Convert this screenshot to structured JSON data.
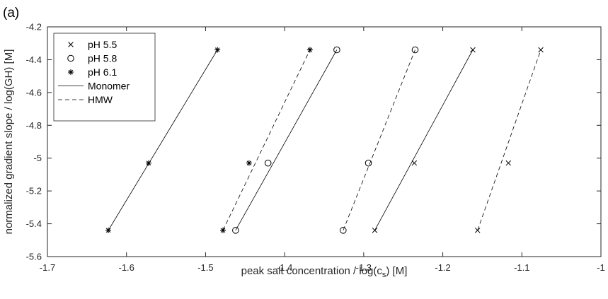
{
  "panel_label": "(a)",
  "chart_data": {
    "type": "scatter",
    "title": "",
    "xlabel_main": "peak salt concentration / log(c",
    "xlabel_sub": "s",
    "xlabel_tail": ") [M]",
    "ylabel": "normalized gradient slope / log(GH) [M]",
    "xlim": [
      -1.7,
      -1.0
    ],
    "ylim": [
      -5.6,
      -4.2
    ],
    "xticks": [
      -1.7,
      -1.6,
      -1.5,
      -1.4,
      -1.3,
      -1.2,
      -1.1,
      -1
    ],
    "xtick_labels": [
      "-1.7",
      "-1.6",
      "-1.5",
      "-1.4",
      "-1.3",
      "-1.2",
      "-1.1",
      "-1"
    ],
    "yticks": [
      -5.6,
      -5.4,
      -5.2,
      -5.0,
      -4.8,
      -4.6,
      -4.4,
      -4.2
    ],
    "ytick_labels": [
      "-5.6",
      "-5.4",
      "-5.2",
      "-5",
      "-4.8",
      "-4.6",
      "-4.4",
      "-4.2"
    ],
    "grid": false,
    "legend_position": "top-left",
    "legend": [
      {
        "label": "pH 5.5",
        "marker": "x"
      },
      {
        "label": "pH 5.8",
        "marker": "o"
      },
      {
        "label": "pH 6.1",
        "marker": "*"
      },
      {
        "label": "Monomer",
        "line": "solid"
      },
      {
        "label": "HMW",
        "line": "dashed"
      }
    ],
    "series": [
      {
        "ph": "pH 6.1",
        "species": "Monomer",
        "marker": "*",
        "line": "solid",
        "x": [
          -1.623,
          -1.572,
          -1.485
        ],
        "y": [
          -5.44,
          -5.03,
          -4.34
        ],
        "fit": {
          "x": [
            -1.623,
            -1.485
          ],
          "y": [
            -5.44,
            -4.34
          ]
        }
      },
      {
        "ph": "pH 6.1",
        "species": "HMW",
        "marker": "*",
        "line": "dashed",
        "x": [
          -1.478,
          -1.445,
          -1.368
        ],
        "y": [
          -5.44,
          -5.03,
          -4.34
        ],
        "fit": {
          "x": [
            -1.478,
            -1.368
          ],
          "y": [
            -5.44,
            -4.34
          ]
        }
      },
      {
        "ph": "pH 5.8",
        "species": "Monomer",
        "marker": "o",
        "line": "solid",
        "x": [
          -1.462,
          -1.421,
          -1.334
        ],
        "y": [
          -5.44,
          -5.03,
          -4.34
        ],
        "fit": {
          "x": [
            -1.462,
            -1.334
          ],
          "y": [
            -5.44,
            -4.34
          ]
        }
      },
      {
        "ph": "pH 5.8",
        "species": "HMW",
        "marker": "o",
        "line": "dashed",
        "x": [
          -1.326,
          -1.294,
          -1.235
        ],
        "y": [
          -5.44,
          -5.03,
          -4.34
        ],
        "fit": {
          "x": [
            -1.326,
            -1.235
          ],
          "y": [
            -5.44,
            -4.34
          ]
        }
      },
      {
        "ph": "pH 5.5",
        "species": "Monomer",
        "marker": "x",
        "line": "solid",
        "x": [
          -1.286,
          -1.236,
          -1.162
        ],
        "y": [
          -5.44,
          -5.03,
          -4.34
        ],
        "fit": {
          "x": [
            -1.286,
            -1.162
          ],
          "y": [
            -5.44,
            -4.34
          ]
        }
      },
      {
        "ph": "pH 5.5",
        "species": "HMW",
        "marker": "x",
        "line": "dashed",
        "x": [
          -1.156,
          -1.117,
          -1.076
        ],
        "y": [
          -5.44,
          -5.03,
          -4.34
        ],
        "fit": {
          "x": [
            -1.156,
            -1.076
          ],
          "y": [
            -5.44,
            -4.34
          ]
        }
      }
    ]
  }
}
